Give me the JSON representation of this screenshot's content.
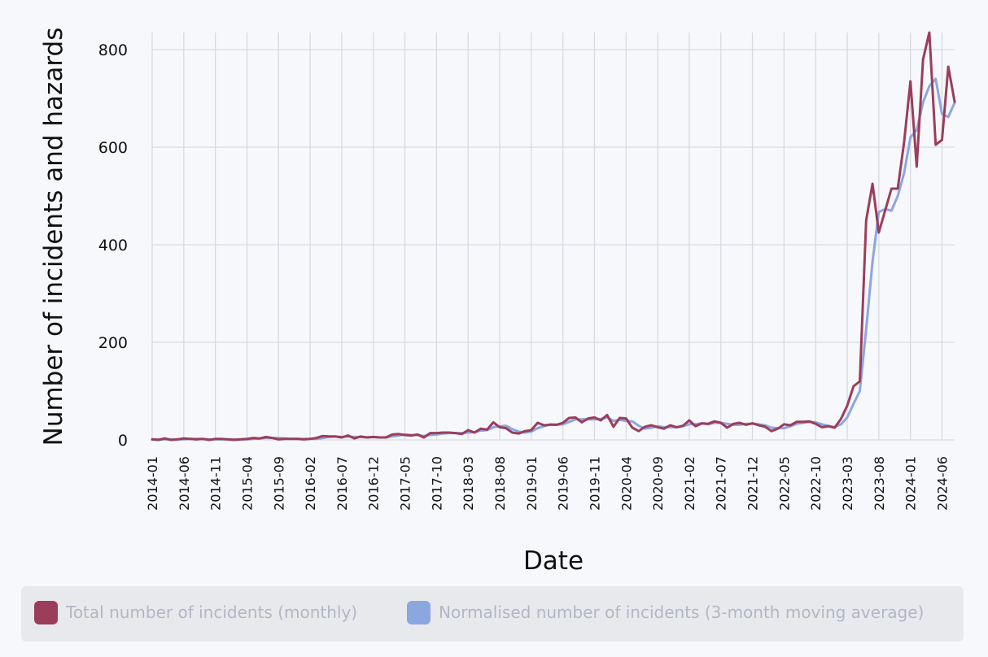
{
  "chart_data": {
    "type": "line",
    "xlabel": "Date",
    "ylabel": "Number of incidents and hazards",
    "ylim": [
      0,
      835
    ],
    "yticks": [
      0,
      200,
      400,
      600,
      800
    ],
    "grid": true,
    "legend_position": "bottom",
    "x_tick_labels": [
      "2014-01",
      "2014-06",
      "2014-11",
      "2015-04",
      "2015-09",
      "2016-02",
      "2016-07",
      "2016-12",
      "2017-05",
      "2017-10",
      "2018-03",
      "2018-08",
      "2019-01",
      "2019-06",
      "2019-11",
      "2020-04",
      "2020-09",
      "2021-02",
      "2021-07",
      "2021-12",
      "2022-05",
      "2022-10",
      "2023-03",
      "2023-08",
      "2024-01",
      "2024-06"
    ],
    "x_start": "2014-01",
    "series": [
      {
        "name": "Total number of incidents (monthly)",
        "color": "#9b3d5b",
        "values": [
          1,
          0,
          3,
          0,
          1,
          3,
          2,
          1,
          2,
          0,
          2,
          2,
          1,
          0,
          1,
          2,
          4,
          3,
          6,
          4,
          1,
          2,
          2,
          2,
          1,
          2,
          4,
          8,
          7,
          7,
          5,
          9,
          3,
          7,
          5,
          6,
          5,
          5,
          11,
          12,
          10,
          9,
          11,
          5,
          14,
          14,
          15,
          15,
          14,
          12,
          20,
          15,
          23,
          21,
          36,
          26,
          24,
          15,
          13,
          18,
          20,
          35,
          30,
          31,
          31,
          35,
          45,
          46,
          36,
          44,
          46,
          40,
          51,
          27,
          45,
          44,
          25,
          18,
          27,
          30,
          26,
          23,
          30,
          26,
          29,
          40,
          28,
          34,
          33,
          38,
          35,
          25,
          33,
          35,
          31,
          34,
          30,
          27,
          18,
          23,
          32,
          30,
          37,
          37,
          38,
          33,
          26,
          28,
          25,
          43,
          70,
          110,
          120,
          450,
          525,
          425,
          470,
          515,
          515,
          610,
          735,
          560,
          780,
          835,
          605,
          615,
          765,
          693
        ],
        "legend_label": "Total number of incidents (monthly)"
      },
      {
        "name": "Normalised number of incidents (3-month moving average)",
        "color": "#8ca6e0",
        "values": [
          1,
          1,
          1,
          1,
          1,
          1,
          2,
          2,
          2,
          1,
          1,
          1,
          1,
          1,
          1,
          1,
          2,
          3,
          4,
          4,
          4,
          3,
          2,
          2,
          2,
          2,
          2,
          4,
          6,
          7,
          6,
          7,
          6,
          6,
          5,
          6,
          5,
          5,
          7,
          9,
          11,
          10,
          10,
          8,
          10,
          11,
          13,
          14,
          14,
          14,
          15,
          16,
          19,
          20,
          26,
          28,
          29,
          22,
          17,
          15,
          17,
          24,
          28,
          32,
          31,
          32,
          37,
          42,
          42,
          42,
          42,
          43,
          46,
          39,
          41,
          39,
          38,
          29,
          23,
          25,
          28,
          26,
          26,
          26,
          28,
          32,
          32,
          34,
          32,
          35,
          35,
          33,
          31,
          31,
          33,
          33,
          32,
          30,
          25,
          24,
          24,
          28,
          33,
          35,
          37,
          36,
          32,
          29,
          26,
          32,
          46,
          74,
          100,
          227,
          365,
          467,
          473,
          470,
          500,
          547,
          620,
          635,
          692,
          725,
          740,
          668,
          662,
          691
        ]
      }
    ]
  },
  "legend": {
    "items": [
      {
        "label": "Total number of incidents (monthly)",
        "color": "#9b3d5b"
      },
      {
        "label": "Normalised number of incidents (3-month moving average)",
        "color": "#8ca6e0"
      }
    ]
  }
}
